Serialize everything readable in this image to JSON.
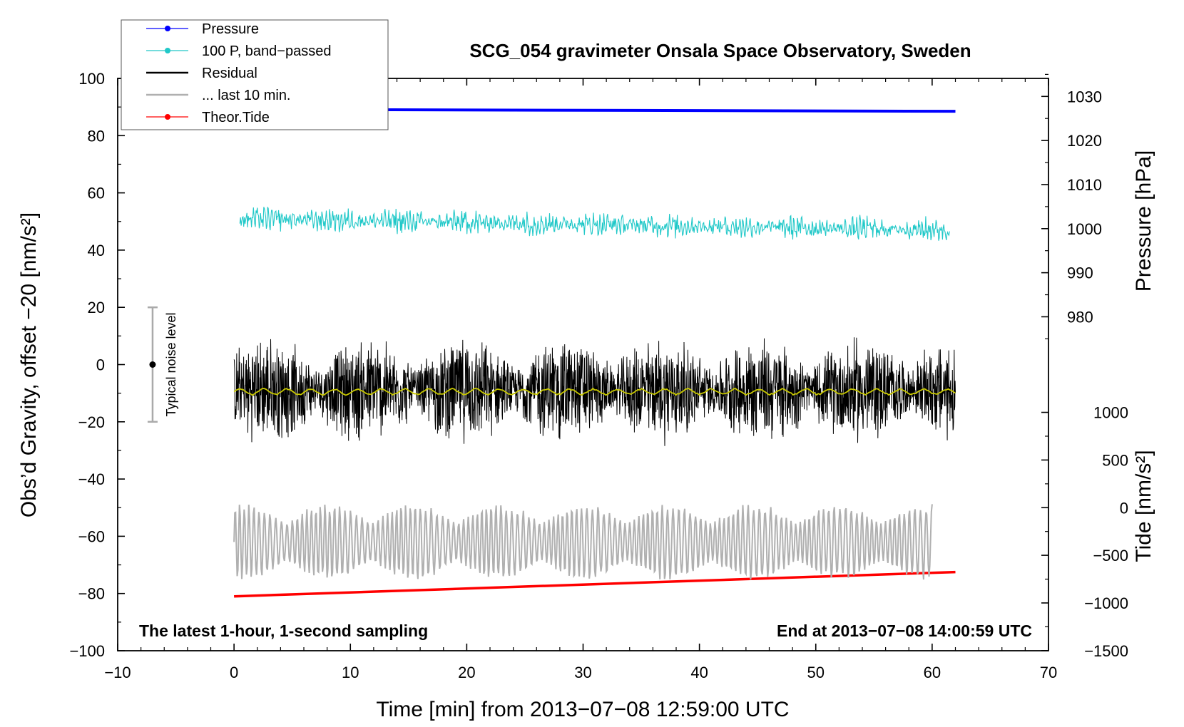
{
  "chart_data": {
    "type": "line",
    "title": "SCG_054 gravimeter Onsala Space Observatory, Sweden",
    "xlabel": "Time [min] from 2013−07−08 12:59:00 UTC",
    "ylabel": "Obs’d Gravity, offset −20 [nm/s²]",
    "xlim": [
      -10,
      70
    ],
    "ylim": [
      -100,
      100
    ],
    "x_ticks": [
      -10,
      0,
      10,
      20,
      30,
      40,
      50,
      60,
      70
    ],
    "x_tick_labels": [
      "−10",
      "0",
      "10",
      "20",
      "30",
      "40",
      "50",
      "60",
      "70"
    ],
    "y_ticks": [
      -100,
      -80,
      -60,
      -40,
      -20,
      0,
      20,
      40,
      60,
      80,
      100
    ],
    "y_tick_labels": [
      "−100",
      "−80",
      "−60",
      "−40",
      "−20",
      "0",
      "20",
      "40",
      "60",
      "80",
      "100"
    ],
    "pressure_axis": {
      "label": "Pressure [hPa]",
      "ticks": [
        980,
        990,
        1000,
        1010,
        1020,
        1030
      ],
      "tick_labels": [
        "980",
        "990",
        "1000",
        "1010",
        "1020",
        "1030"
      ],
      "gravity_at_1000": 47.5,
      "gravity_per_hPa": 1.54
    },
    "tide_axis": {
      "label": "Tide [nm/s²]",
      "ticks": [
        -1500,
        -1000,
        -500,
        0,
        500,
        1000
      ],
      "tick_labels": [
        "−1500",
        "−1000",
        "−500",
        "0",
        "500",
        "1000"
      ],
      "gravity_at_0": -50,
      "gravity_per_unit": 0.0333
    },
    "legend": [
      {
        "label": "Pressure",
        "color": "#0000ff",
        "marker": true
      },
      {
        "label": "100 P, band−passed",
        "color": "#20c8c8",
        "marker": true
      },
      {
        "label": "Residual",
        "color": "#000000",
        "marker": false
      },
      {
        "label": "... last 10 min.",
        "color": "#b0b0b0",
        "marker": false
      },
      {
        "label": "Theor.Tide",
        "color": "#ff0000",
        "marker": true
      }
    ],
    "series": [
      {
        "name": "Pressure",
        "color": "#0000ff",
        "x_range": [
          0,
          62
        ],
        "y_start": 89.2,
        "y_end": 88.5
      },
      {
        "name": "100 P, band-passed",
        "color": "#20c8c8",
        "x_range": [
          0.5,
          61.5
        ],
        "y_center": 51,
        "y_center_end": 47,
        "amplitude": 4.5
      },
      {
        "name": "Residual",
        "color": "#000000",
        "x_range": [
          0,
          62
        ],
        "y_center": -9,
        "amplitude": 20
      },
      {
        "name": "Residual smoothed",
        "color": "#c8c800",
        "x_range": [
          0,
          62
        ],
        "y_center": -9.5,
        "amplitude": 1.2
      },
      {
        "name": "... last 10 min.",
        "color": "#b0b0b0",
        "x_range": [
          0,
          60
        ],
        "y_center": -62,
        "amplitude": 14
      },
      {
        "name": "Theor.Tide",
        "color": "#ff0000",
        "x_range": [
          0,
          62
        ],
        "y_start": -81,
        "y_end": -72.5
      }
    ],
    "noise_bar": {
      "label": "Typical noise level",
      "x": -7,
      "y": 0,
      "low": -20,
      "high": 20
    },
    "annotations": {
      "left": "The latest 1-hour, 1-second sampling",
      "right": "End at 2013−07−08 14:00:59 UTC"
    }
  }
}
